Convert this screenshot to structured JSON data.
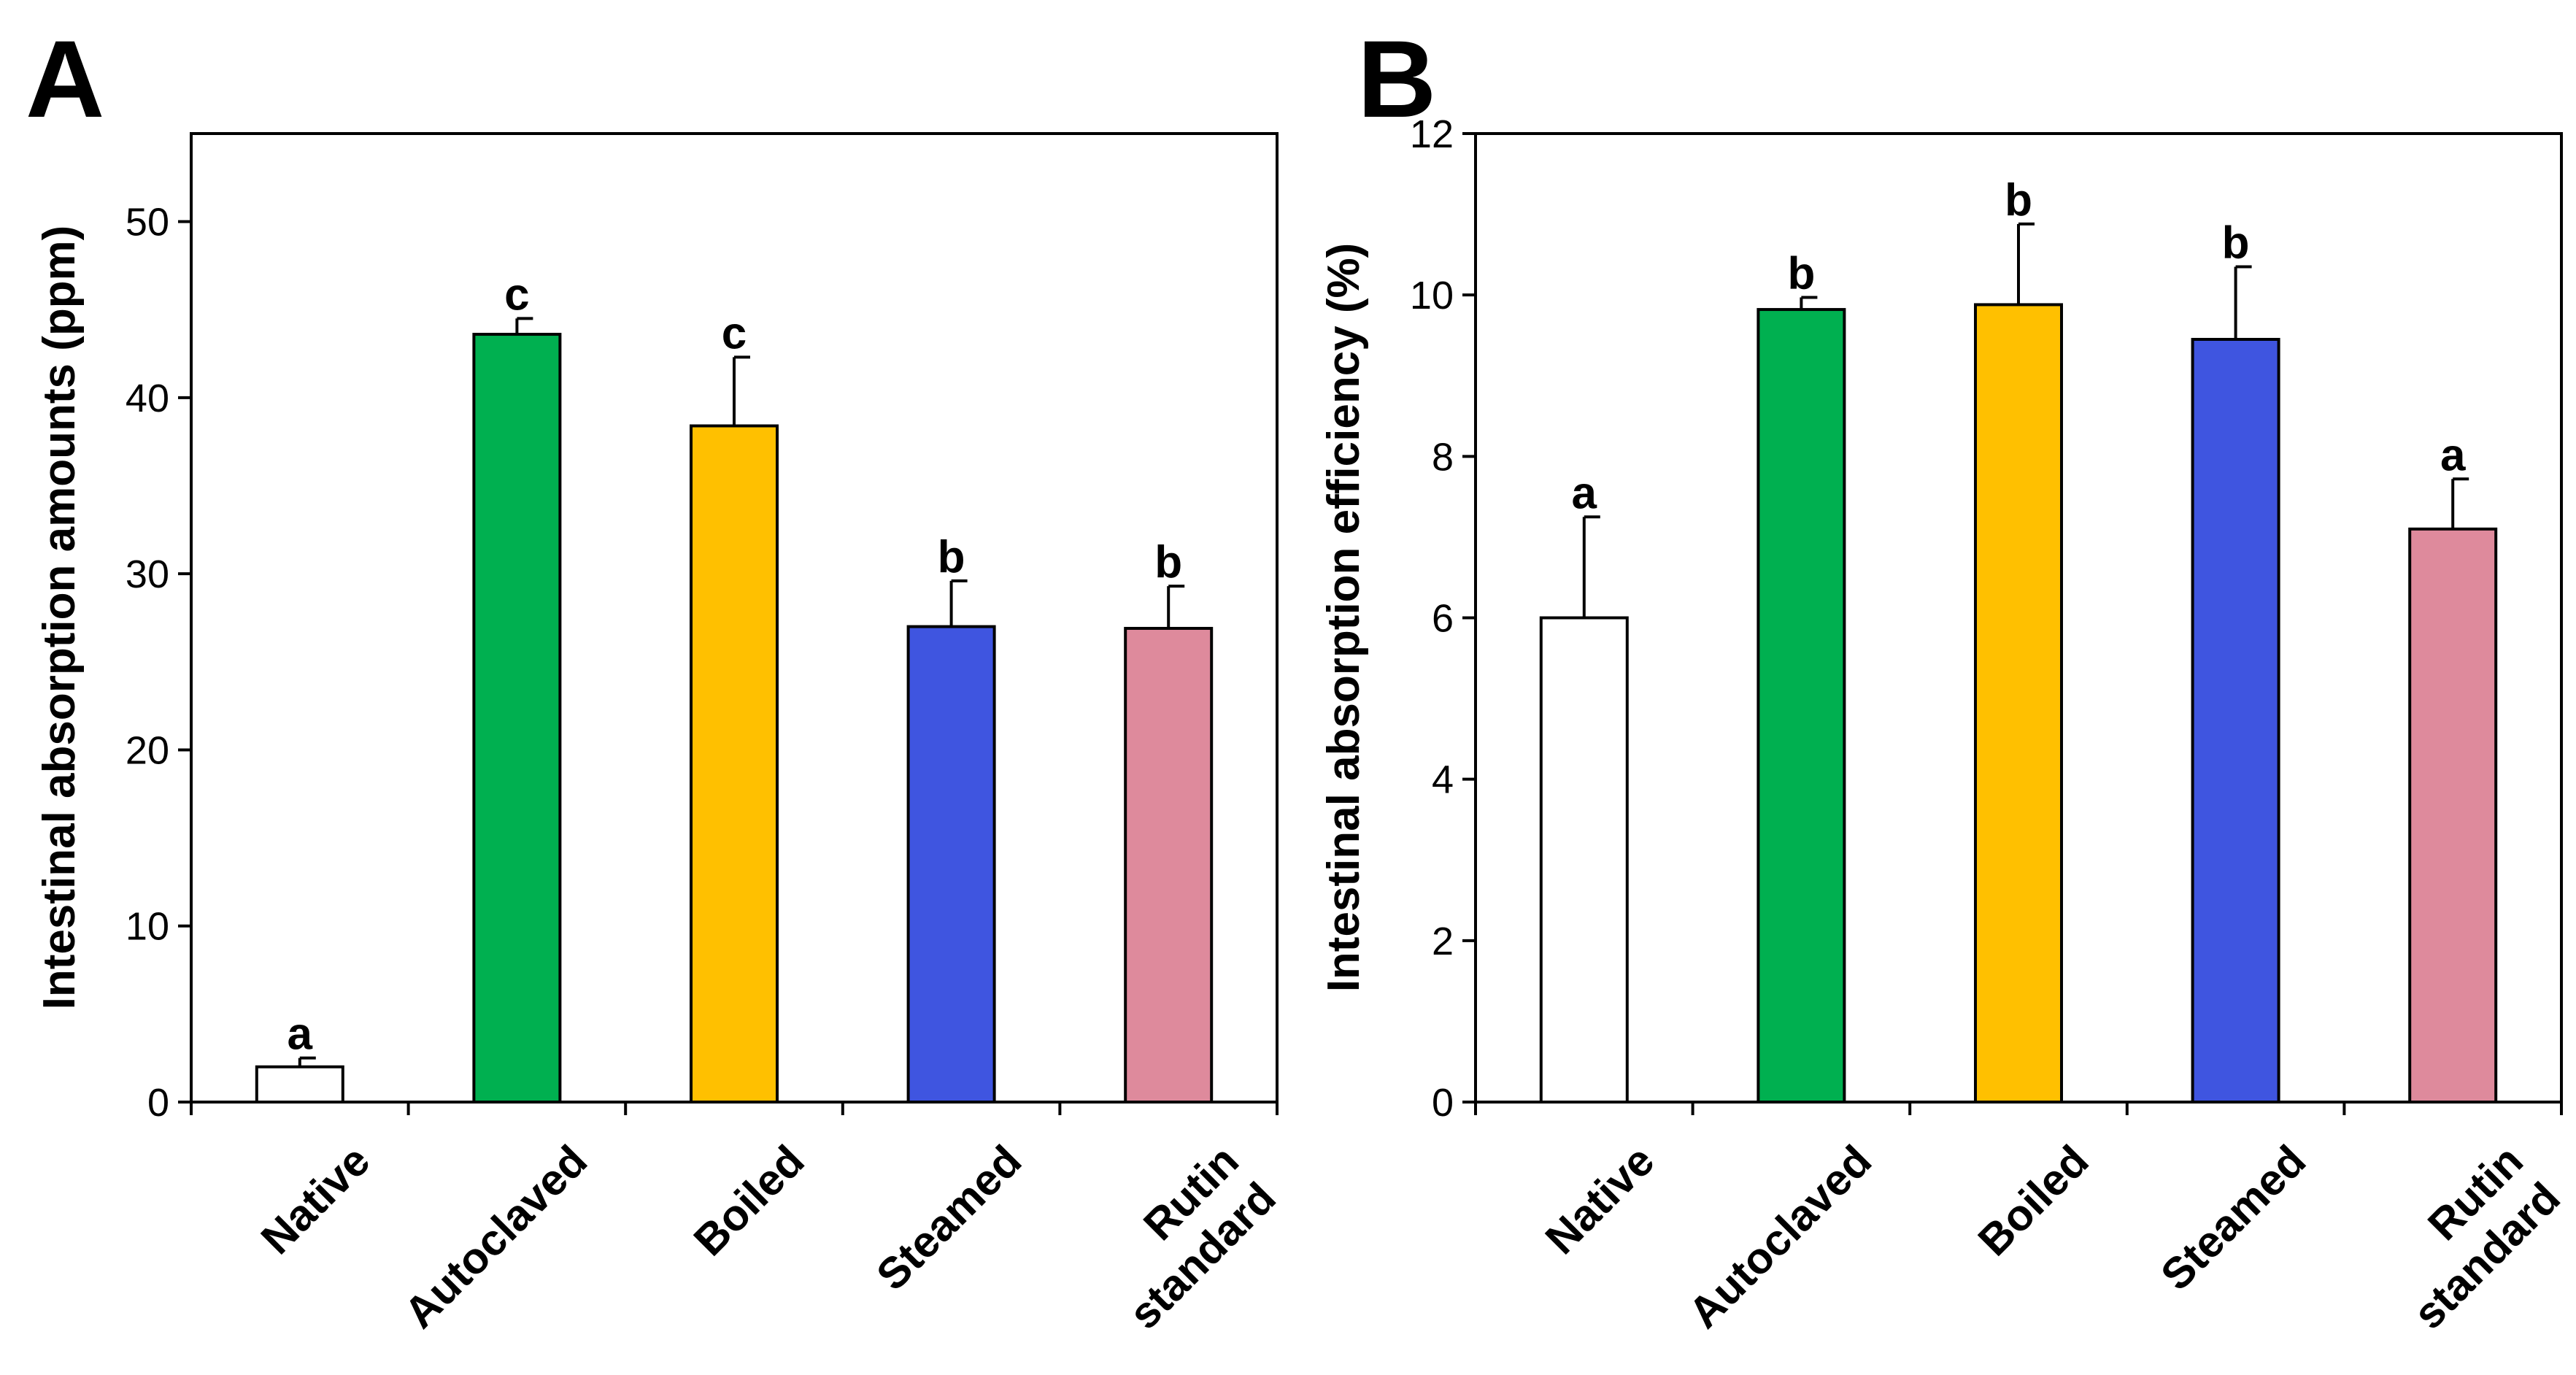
{
  "chart_data": [
    {
      "panel": "A",
      "type": "bar",
      "title": "",
      "xlabel": "",
      "ylabel": "Intestinal absorption amounts (ppm)",
      "ylim": [
        0,
        55
      ],
      "yticks": [
        0,
        10,
        20,
        30,
        40,
        50
      ],
      "grid": false,
      "categories": [
        [
          "Native"
        ],
        [
          "Autoclaved"
        ],
        [
          "Boiled"
        ],
        [
          "Steamed"
        ],
        [
          "Rutin",
          "standard"
        ]
      ],
      "values": [
        2.0,
        43.6,
        38.4,
        27.0,
        26.9
      ],
      "errors": [
        0.5,
        0.9,
        3.9,
        2.6,
        2.4
      ],
      "labels": [
        "a",
        "c",
        "c",
        "b",
        "b"
      ],
      "colors": [
        "#ffffff",
        "#00b050",
        "#ffc000",
        "#3f55e0",
        "#de8a9c"
      ]
    },
    {
      "panel": "B",
      "type": "bar",
      "title": "",
      "xlabel": "",
      "ylabel": "Intestinal absorption efficiency (%)",
      "ylim": [
        0,
        12
      ],
      "yticks": [
        0,
        2,
        4,
        6,
        8,
        10,
        12
      ],
      "grid": false,
      "categories": [
        [
          "Native"
        ],
        [
          "Autoclaved"
        ],
        [
          "Boiled"
        ],
        [
          "Steamed"
        ],
        [
          "Rutin",
          "standard"
        ]
      ],
      "values": [
        6.0,
        9.82,
        9.88,
        9.45,
        7.1
      ],
      "errors": [
        1.25,
        0.15,
        1.0,
        0.9,
        0.62
      ],
      "labels": [
        "a",
        "b",
        "b",
        "b",
        "a"
      ],
      "colors": [
        "#ffffff",
        "#00b050",
        "#ffc000",
        "#3f55e0",
        "#de8a9c"
      ]
    }
  ]
}
